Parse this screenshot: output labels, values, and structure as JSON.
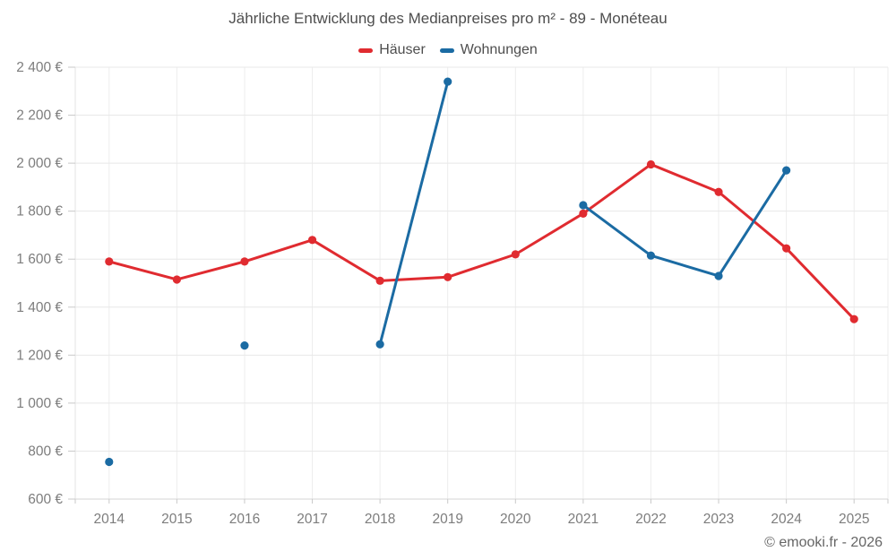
{
  "footer": {
    "credit": "© emooki.fr - 2026"
  },
  "chart_data": {
    "type": "line",
    "title": "Jährliche Entwicklung des Medianpreises pro m² - 89 - Monéteau",
    "categories": [
      2014,
      2015,
      2016,
      2017,
      2018,
      2019,
      2020,
      2021,
      2022,
      2023,
      2024,
      2025
    ],
    "series": [
      {
        "name": "Häuser",
        "color": "#e02b30",
        "values": [
          1590,
          1515,
          1590,
          1680,
          1510,
          1525,
          1620,
          1790,
          1995,
          1880,
          1645,
          1350
        ]
      },
      {
        "name": "Wohnungen",
        "color": "#1b6ba3",
        "values": [
          755,
          null,
          1240,
          null,
          1245,
          2340,
          null,
          1825,
          1615,
          1530,
          1970,
          null
        ]
      }
    ],
    "ylim": [
      600,
      2400
    ],
    "ytick_step": 200,
    "y_unit": "€",
    "grid": true,
    "legend_position": "top",
    "xlabel": "",
    "ylabel": ""
  }
}
